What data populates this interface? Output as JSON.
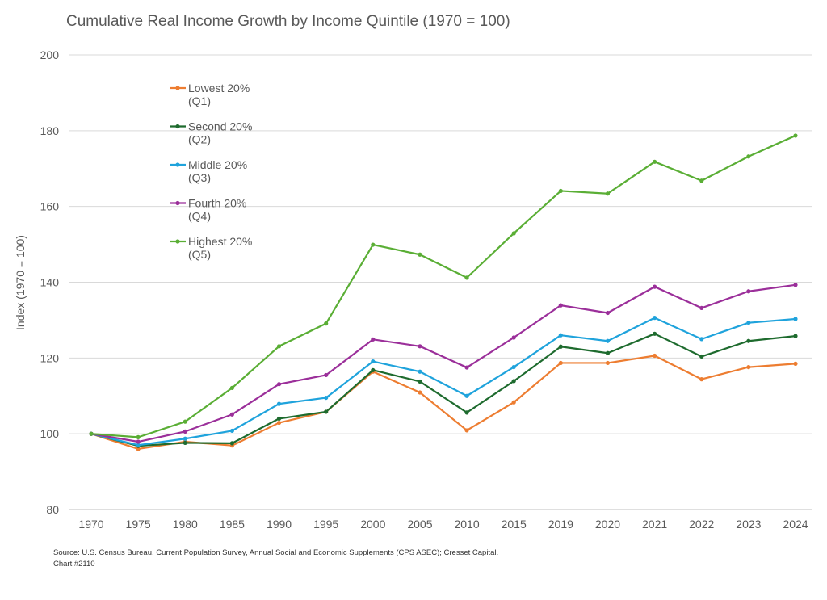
{
  "chart_data": {
    "type": "line",
    "title": "Cumulative Real Income Growth by Income Quintile (1970 = 100)",
    "xlabel": "",
    "ylabel": "Index (1970 = 100)",
    "ylim": [
      80,
      200
    ],
    "yticks": [
      80,
      100,
      120,
      140,
      160,
      180,
      200
    ],
    "grid": true,
    "legend": "top-left",
    "categories": [
      "1970",
      "1975",
      "1980",
      "1985",
      "1990",
      "1995",
      "2000",
      "2005",
      "2010",
      "2015",
      "2019",
      "2020",
      "2021",
      "2022",
      "2023",
      "2024"
    ],
    "series": [
      {
        "name": "Lowest 20%",
        "sub": "(Q1)",
        "color": "#ED7D31",
        "values": [
          100,
          96,
          97.9,
          96.9,
          102.9,
          105.8,
          116.4,
          110.9,
          100.9,
          108.3,
          118.7,
          118.7,
          120.6,
          114.4,
          117.6,
          118.5
        ]
      },
      {
        "name": "Second 20%",
        "sub": "(Q2)",
        "color": "#1E6B2E",
        "values": [
          100,
          96.8,
          97.6,
          97.5,
          104,
          105.8,
          116.8,
          113.8,
          105.6,
          113.9,
          123,
          121.3,
          126.4,
          120.4,
          124.5,
          125.8
        ]
      },
      {
        "name": "Middle 20%",
        "sub": "(Q3)",
        "color": "#1FA3DC",
        "values": [
          100,
          97,
          98.7,
          100.8,
          107.9,
          109.5,
          119.1,
          116.4,
          110,
          117.6,
          126,
          124.5,
          130.6,
          125,
          129.3,
          130.3
        ]
      },
      {
        "name": "Fourth 20%",
        "sub": "(Q4)",
        "color": "#9B2F9A",
        "values": [
          100,
          97.9,
          100.6,
          105.1,
          113.1,
          115.5,
          124.9,
          123.1,
          117.5,
          125.4,
          133.9,
          131.9,
          138.8,
          133.2,
          137.6,
          139.3
        ]
      },
      {
        "name": "Highest 20%",
        "sub": "(Q5)",
        "color": "#5AAE35",
        "values": [
          100,
          99.1,
          103.2,
          112.1,
          123.1,
          129.1,
          149.9,
          147.3,
          141.2,
          152.9,
          164.1,
          163.4,
          171.8,
          166.8,
          173.2,
          178.7
        ]
      }
    ]
  },
  "source": "Source: U.S. Census Bureau, Current Population Survey, Annual Social and Economic Supplements (CPS ASEC); Cresset Capital.",
  "chart_number": "Chart #2110"
}
